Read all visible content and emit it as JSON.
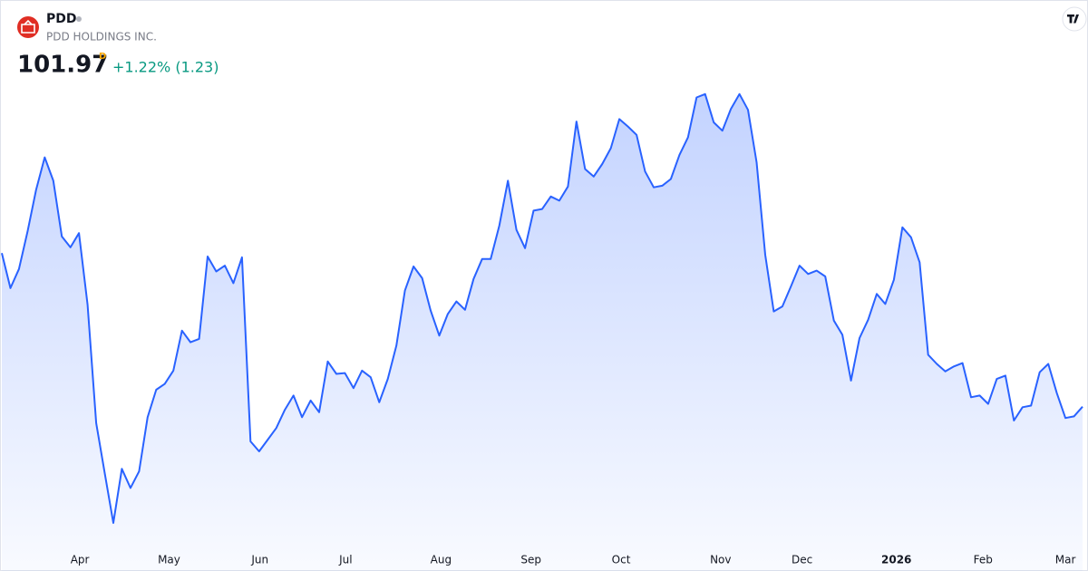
{
  "chart_data": {
    "type": "area",
    "title": "PDD",
    "subtitle": "PDD HOLDINGS INC.",
    "last_price": 101.97,
    "interval": "D",
    "change": "+1.22% (1.23)",
    "color": "#2962ff",
    "values": [
      120.4,
      116.2,
      118.5,
      123.0,
      128.0,
      131.9,
      129.1,
      122.4,
      121.1,
      122.8,
      114.2,
      100.0,
      94.0,
      88.0,
      94.5,
      92.2,
      94.2,
      100.7,
      104.0,
      104.7,
      106.3,
      111.1,
      109.7,
      110.1,
      120.0,
      118.2,
      118.9,
      116.8,
      119.9,
      97.8,
      96.6,
      98.0,
      99.4,
      101.6,
      103.3,
      100.7,
      102.7,
      101.3,
      107.4,
      105.9,
      106.0,
      104.2,
      106.3,
      105.5,
      102.5,
      105.3,
      109.3,
      115.9,
      118.8,
      117.4,
      113.5,
      110.5,
      113.1,
      114.6,
      113.6,
      117.3,
      119.7,
      119.7,
      123.7,
      129.1,
      123.2,
      121.0,
      125.5,
      125.7,
      127.2,
      126.7,
      128.4,
      136.2,
      130.5,
      129.6,
      131.1,
      133.0,
      136.5,
      135.6,
      134.6,
      130.2,
      128.3,
      128.5,
      129.3,
      132.2,
      134.3,
      139.1,
      139.5,
      136.1,
      135.1,
      137.7,
      139.5,
      137.6,
      131.3,
      120.2,
      113.4,
      114.0,
      116.4,
      118.9,
      117.9,
      118.3,
      117.6,
      112.3,
      110.6,
      105.1,
      110.2,
      112.4,
      115.5,
      114.3,
      117.2,
      123.5,
      122.3,
      119.3,
      108.2,
      107.1,
      106.2,
      106.8,
      107.2,
      103.1,
      103.3,
      102.3,
      105.3,
      105.7,
      100.3,
      101.9,
      102.1,
      106.1,
      107.1,
      103.6,
      100.6,
      100.8,
      101.97
    ],
    "xlim": [
      0,
      126
    ],
    "xticks": [
      {
        "value": 9.1,
        "label": "Apr"
      },
      {
        "value": 19.5,
        "label": "May"
      },
      {
        "value": 30.1,
        "label": "Jun"
      },
      {
        "value": 40.1,
        "label": "Jul"
      },
      {
        "value": 51.2,
        "label": "Aug"
      },
      {
        "value": 61.7,
        "label": "Sep"
      },
      {
        "value": 72.2,
        "label": "Oct"
      },
      {
        "value": 83.8,
        "label": "Nov"
      },
      {
        "value": 93.3,
        "label": "Dec"
      },
      {
        "value": 104.3,
        "label": "2026"
      },
      {
        "value": 114.4,
        "label": "Feb"
      },
      {
        "value": 124.0,
        "label": "Mar"
      }
    ],
    "ylim": [
      85.5,
      141
    ]
  }
}
